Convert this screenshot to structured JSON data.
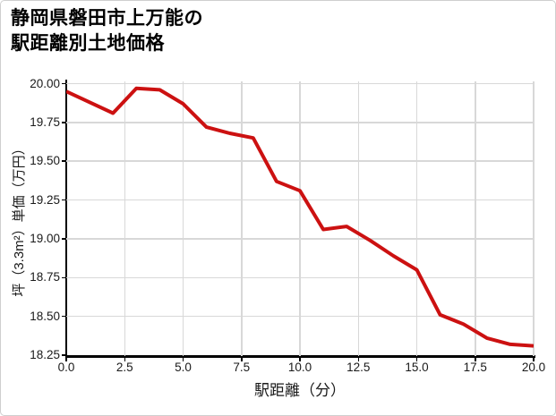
{
  "chart": {
    "title_lines": [
      "静岡県磐田市上万能の",
      "駅距離別土地価格"
    ]
  },
  "chart_data": {
    "type": "line",
    "title": "静岡県磐田市上万能の駅距離別土地価格",
    "xlabel": "駅距離（分）",
    "ylabel": "坪（3.3m²）単価（万円）",
    "x": [
      0,
      2,
      3,
      4,
      5,
      6,
      7,
      8,
      9,
      10,
      11,
      12,
      13,
      14,
      15,
      16,
      17,
      18,
      19,
      20
    ],
    "y": [
      19.95,
      19.81,
      19.97,
      19.96,
      19.87,
      19.72,
      19.68,
      19.65,
      19.37,
      19.31,
      19.06,
      19.08,
      18.99,
      18.89,
      18.8,
      18.51,
      18.45,
      18.36,
      18.32,
      18.31
    ],
    "xlim": [
      0,
      20
    ],
    "ylim": [
      18.25,
      20.0
    ],
    "xticks": [
      0,
      2.5,
      5,
      7.5,
      10,
      12.5,
      15,
      17.5,
      20
    ],
    "xtick_labels": [
      "0.0",
      "2.5",
      "5.0",
      "7.5",
      "10.0",
      "12.5",
      "15.0",
      "17.5",
      "20.0"
    ],
    "yticks": [
      18.25,
      18.5,
      18.75,
      19.0,
      19.25,
      19.5,
      19.75,
      20.0
    ],
    "ytick_labels": [
      "18.25",
      "18.50",
      "18.75",
      "19.00",
      "19.25",
      "19.50",
      "19.75",
      "20.00"
    ],
    "grid": true,
    "legend": false,
    "line_color": "#cc1111",
    "grid_color": "#d8d8d8",
    "spine_color": "#000000",
    "text_color": "#1a1a1a"
  }
}
